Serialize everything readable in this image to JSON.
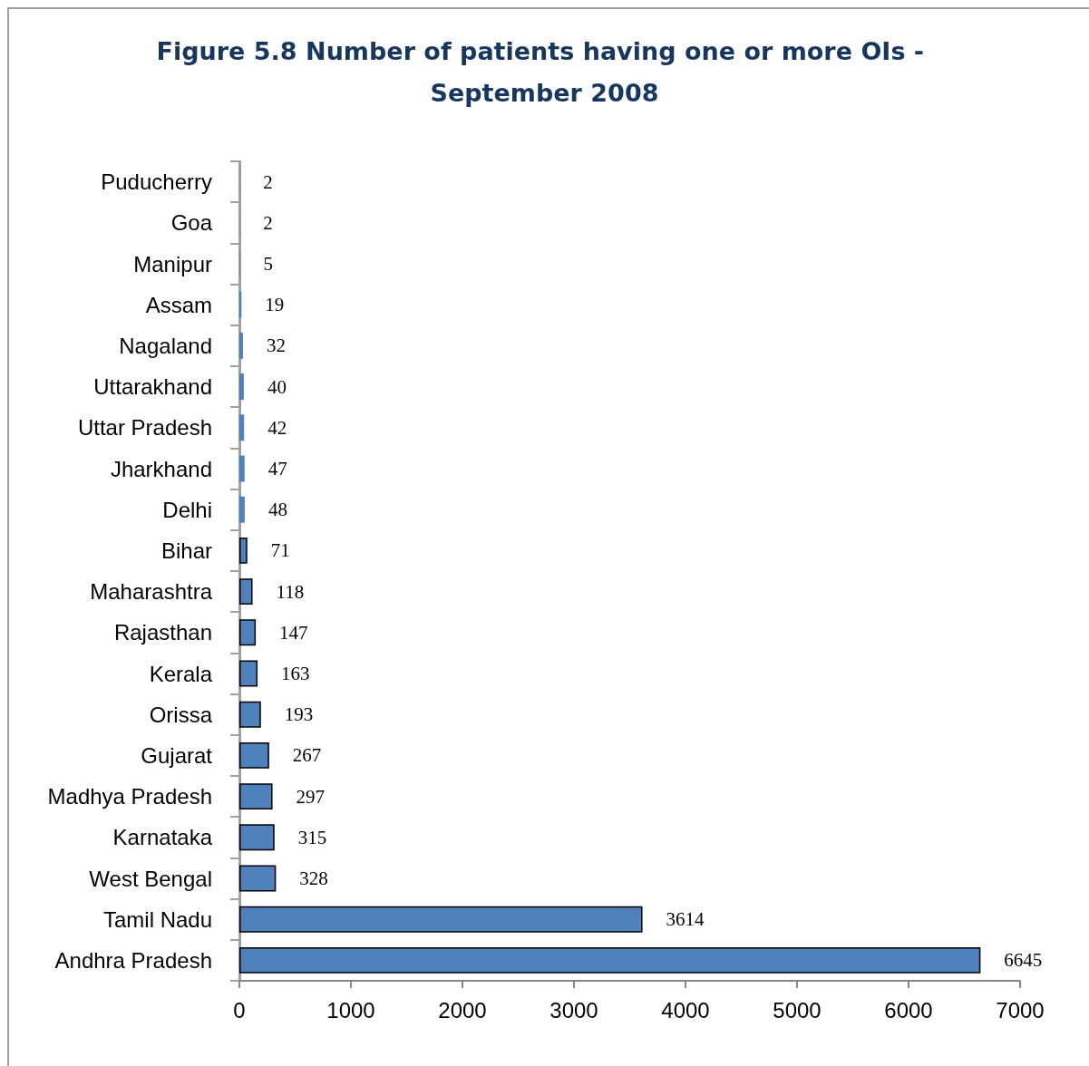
{
  "chart_data": {
    "type": "bar",
    "orientation": "horizontal",
    "title": "Figure 5.8 Number of patients having one or more OIs - September 2008",
    "categories": [
      "Puducherry",
      "Goa",
      "Manipur",
      "Assam",
      "Nagaland",
      "Uttarakhand",
      "Uttar Pradesh",
      "Jharkhand",
      "Delhi",
      "Bihar",
      "Maharashtra",
      "Rajasthan",
      "Kerala",
      "Orissa",
      "Gujarat",
      "Madhya Pradesh",
      "Karnataka",
      "West Bengal",
      "Tamil Nadu",
      "Andhra Pradesh"
    ],
    "values": [
      2,
      2,
      5,
      19,
      32,
      40,
      42,
      47,
      48,
      71,
      118,
      147,
      163,
      193,
      267,
      297,
      315,
      328,
      3614,
      6645
    ],
    "color": "#4f81bd",
    "xlim": [
      0,
      7000
    ],
    "xticks": [
      0,
      1000,
      2000,
      3000,
      4000,
      5000,
      6000,
      7000
    ],
    "grid": false,
    "data_labels": true
  }
}
